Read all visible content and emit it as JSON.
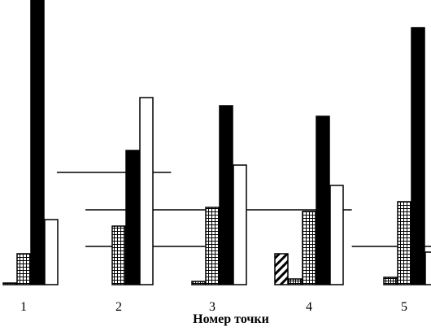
{
  "chart_data": {
    "type": "bar",
    "title": "",
    "xlabel": "Номер точки",
    "ylabel": "",
    "categories": [
      "1",
      "2",
      "3",
      "4",
      "5"
    ],
    "ylim": [
      0,
      350
    ],
    "grid": false,
    "legend": "none",
    "series": [
      {
        "pattern": "hatched",
        "values": [
          0,
          0,
          0,
          38,
          0
        ]
      },
      {
        "pattern": "checkered-small",
        "values": [
          2,
          0,
          4,
          7,
          9
        ]
      },
      {
        "pattern": "checkered",
        "values": [
          38,
          72,
          95,
          90,
          102
        ]
      },
      {
        "pattern": "solid",
        "color": "#000000",
        "values": [
          350,
          165,
          220,
          207,
          316
        ]
      },
      {
        "pattern": "empty",
        "color": "#ffffff",
        "values": [
          80,
          230,
          147,
          122,
          40
        ]
      }
    ],
    "reference_lines": [
      {
        "y": 47,
        "x_from": 1.65,
        "x_to": 3.15
      },
      {
        "y": 47,
        "x_from": 4.45,
        "x_to": 5.3
      },
      {
        "y": 92,
        "x_from": 1.65,
        "x_to": 4.45
      },
      {
        "y": 138,
        "x_from": 1.35,
        "x_to": 2.55
      }
    ]
  }
}
